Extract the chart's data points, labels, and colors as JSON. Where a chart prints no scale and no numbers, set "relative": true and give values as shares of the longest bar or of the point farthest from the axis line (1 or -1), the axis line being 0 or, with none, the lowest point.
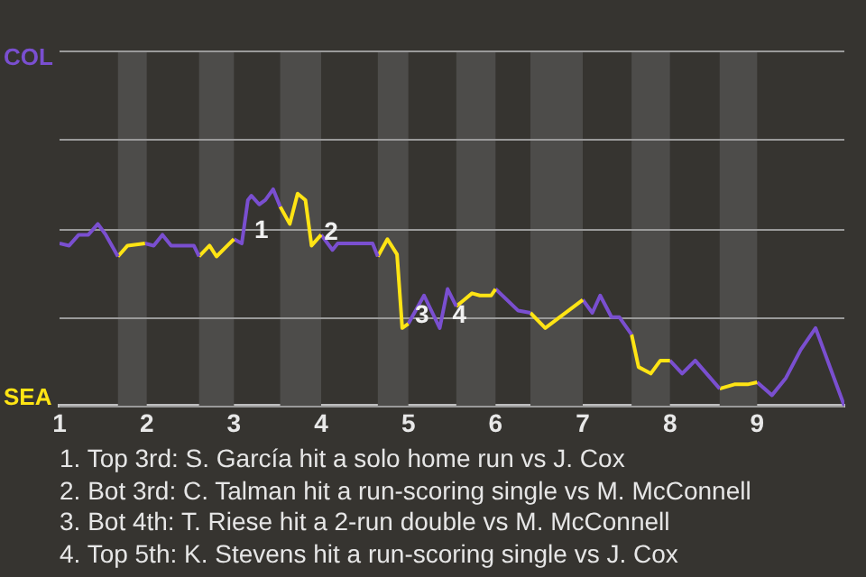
{
  "chart_data": {
    "type": "line",
    "relative": true,
    "xlim": [
      1,
      10
    ],
    "xticks": [
      1,
      2,
      3,
      4,
      5,
      6,
      7,
      8,
      9
    ],
    "legend": "left",
    "marker": "none",
    "line_style": "solid",
    "series": [
      {
        "name": "COL",
        "color": "#7a4fd0",
        "x": [
          1.0,
          1.11,
          1.22,
          1.33,
          1.44,
          1.53,
          1.67
        ],
        "values": [
          0.75,
          0.74,
          0.79,
          0.79,
          0.84,
          0.79,
          0.69
        ]
      },
      {
        "name": "SEA",
        "color": "#ffe414",
        "x": [
          1.67,
          1.78,
          1.98
        ],
        "values": [
          0.69,
          0.74,
          0.75
        ]
      },
      {
        "color": "#7a4fd0",
        "x": [
          1.98,
          2.08,
          2.18,
          2.28,
          2.54,
          2.6
        ],
        "values": [
          0.75,
          0.74,
          0.79,
          0.74,
          0.74,
          0.69
        ]
      },
      {
        "color": "#ffe414",
        "x": [
          2.6,
          2.72,
          2.8,
          3.0
        ],
        "values": [
          0.69,
          0.74,
          0.69,
          0.77
        ]
      },
      {
        "color": "#7a4fd0",
        "x": [
          3.0,
          3.09,
          3.16,
          3.2,
          3.29,
          3.36,
          3.45,
          3.53
        ],
        "values": [
          0.77,
          0.75,
          0.95,
          0.97,
          0.93,
          0.95,
          1,
          0.92
        ]
      },
      {
        "color": "#ffe414",
        "x": [
          3.53,
          3.64,
          3.73,
          3.82,
          3.89,
          4.0
        ],
        "values": [
          0.92,
          0.84,
          0.98,
          0.95,
          0.74,
          0.79
        ]
      },
      {
        "color": "#7a4fd0",
        "x": [
          4.0,
          4.13,
          4.19,
          4.59,
          4.65
        ],
        "values": [
          0.79,
          0.72,
          0.75,
          0.75,
          0.69
        ]
      },
      {
        "color": "#ffe414",
        "x": [
          4.65,
          4.76,
          4.87,
          4.93,
          5.0
        ],
        "values": [
          0.69,
          0.77,
          0.7,
          0.36,
          0.38
        ]
      },
      {
        "color": "#7a4fd0",
        "x": [
          5.0,
          5.18,
          5.36,
          5.45,
          5.55
        ],
        "values": [
          0.38,
          0.51,
          0.36,
          0.54,
          0.46
        ]
      },
      {
        "color": "#ffe414",
        "x": [
          5.55,
          5.73,
          5.82,
          5.95,
          6.0
        ],
        "values": [
          0.46,
          0.52,
          0.51,
          0.51,
          0.54
        ]
      },
      {
        "color": "#7a4fd0",
        "x": [
          6.0,
          6.26,
          6.4
        ],
        "values": [
          0.54,
          0.44,
          0.43
        ]
      },
      {
        "color": "#ffe414",
        "x": [
          6.4,
          6.57,
          7.0
        ],
        "values": [
          0.43,
          0.36,
          0.49
        ]
      },
      {
        "color": "#7a4fd0",
        "x": [
          7.0,
          7.11,
          7.2,
          7.33,
          7.42,
          7.56
        ],
        "values": [
          0.49,
          0.43,
          0.51,
          0.41,
          0.41,
          0.33
        ]
      },
      {
        "color": "#ffe414",
        "x": [
          7.56,
          7.64,
          7.78,
          7.89,
          8.0
        ],
        "values": [
          0.33,
          0.18,
          0.15,
          0.21,
          0.21
        ]
      },
      {
        "color": "#7a4fd0",
        "x": [
          8.0,
          8.14,
          8.29,
          8.57
        ],
        "values": [
          0.21,
          0.15,
          0.21,
          0.08
        ]
      },
      {
        "color": "#ffe414",
        "x": [
          8.57,
          8.74,
          8.89,
          9.0
        ],
        "values": [
          0.08,
          0.1,
          0.1,
          0.11
        ]
      },
      {
        "color": "#7a4fd0",
        "x": [
          9.0,
          9.17,
          9.33,
          9.5,
          9.67,
          10
        ],
        "values": [
          0.11,
          0.05,
          0.13,
          0.26,
          0.36,
          0
        ]
      }
    ],
    "ref_lines": [
      {
        "axis": "y",
        "value": 0,
        "label": null
      },
      {
        "axis": "y",
        "value": 0.41,
        "label": null
      },
      {
        "axis": "y",
        "value": 0.82,
        "label": null
      },
      {
        "axis": "y",
        "value": 1.23,
        "label": null
      },
      {
        "axis": "y",
        "value": 1.64,
        "label": null
      }
    ],
    "bands": [
      {
        "axis": "x",
        "from": 1.67,
        "to": 2,
        "color": "#4d4c4a"
      },
      {
        "axis": "x",
        "from": 2.6,
        "to": 3,
        "color": "#4d4c4a"
      },
      {
        "axis": "x",
        "from": 3.53,
        "to": 4,
        "color": "#4d4c4a"
      },
      {
        "axis": "x",
        "from": 4.65,
        "to": 5,
        "color": "#4d4c4a"
      },
      {
        "axis": "x",
        "from": 5.55,
        "to": 6,
        "color": "#4d4c4a"
      },
      {
        "axis": "x",
        "from": 6.4,
        "to": 7,
        "color": "#4d4c4a"
      },
      {
        "axis": "x",
        "from": 7.56,
        "to": 8,
        "color": "#4d4c4a"
      },
      {
        "axis": "x",
        "from": 8.57,
        "to": 9,
        "color": "#4d4c4a"
      }
    ],
    "annotations": [
      {
        "text": "1",
        "x": 3.09,
        "y": 0.75
      },
      {
        "text": "2",
        "x": 3.89,
        "y": 0.74
      },
      {
        "text": "3",
        "x": 4.93,
        "y": 0.36
      },
      {
        "text": "4",
        "x": 5.36,
        "y": 0.36
      },
      "1. Top 3rd: S. García hit a solo home run vs J. Cox",
      "2. Bot 3rd: C. Talman hit a run-scoring single vs M. McConnell",
      "3. Bot 4th: T. Riese hit a 2-run double vs M. McConnell",
      "4. Top 5th: K. Stevens hit a run-scoring single vs J. Cox"
    ]
  }
}
